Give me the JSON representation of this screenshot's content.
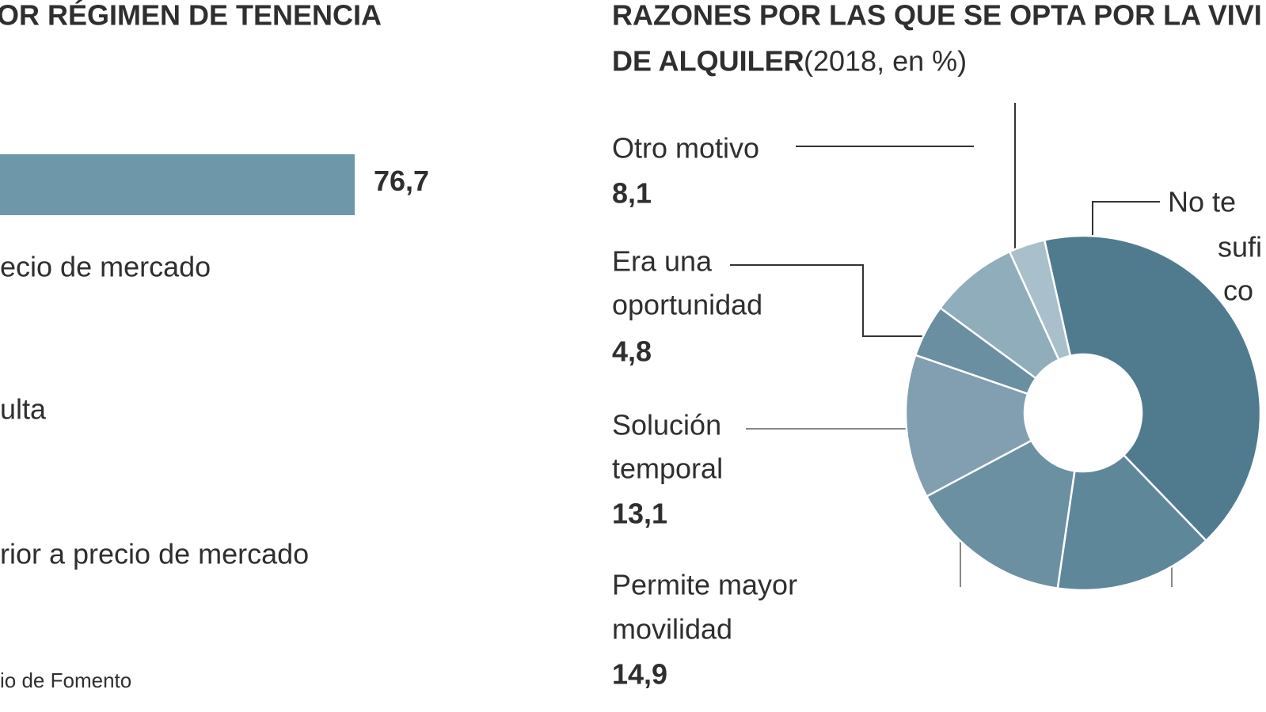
{
  "chart_data": [
    {
      "type": "bar",
      "title": "OR RÉGIMEN DE TENENCIA",
      "categories": [
        null
      ],
      "values": [
        76.7
      ],
      "value_labels": [
        "76,7"
      ],
      "color": "#6f97aa",
      "annotations": [
        "ecio de mercado",
        "ulta",
        "rior a precio de  mercado"
      ],
      "source": "io de Fomento"
    },
    {
      "type": "donut",
      "title": [
        "RAZONES POR LAS QUE SE OPTA POR LA VIVI",
        "DE ALQUILER"
      ],
      "subtitle": "(2018, en %)",
      "categories": [
        [
          "No te",
          "sufi",
          "co"
        ],
        null,
        [
          "Permite mayor",
          "movilidad"
        ],
        [
          "Solución",
          "temporal"
        ],
        [
          "Era una",
          "oportunidad"
        ],
        [
          "Otro motivo"
        ],
        null
      ],
      "values": [
        41.3,
        14.5,
        14.9,
        13.1,
        4.8,
        8.1,
        3.3
      ],
      "value_labels": [
        null,
        null,
        "14,9",
        "13,1",
        "4,8",
        "8,1",
        null
      ],
      "colors": [
        "#507b8f",
        "#5f879a",
        "#6b90a2",
        "#819fb0",
        "#6a8fa1",
        "#90adbc",
        "#a9c0cc"
      ]
    }
  ]
}
